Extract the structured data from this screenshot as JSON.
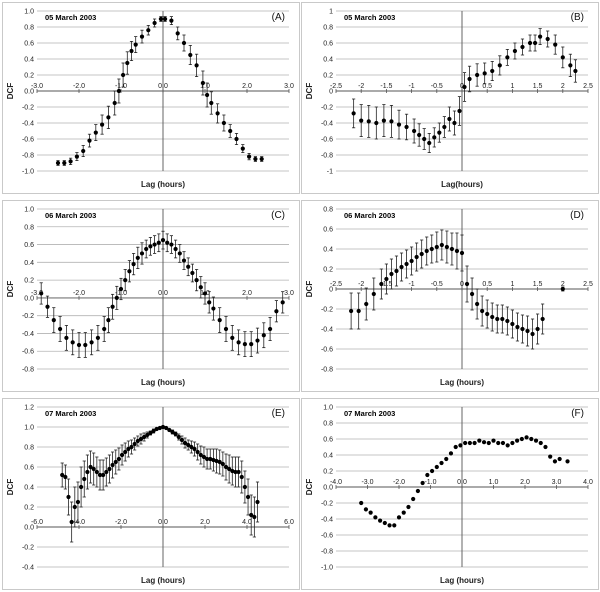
{
  "chart_data": [
    {
      "id": "A",
      "type": "scatter",
      "title": "05 March 2003",
      "panel_label": "(A)",
      "xlabel": "Lag (hours)",
      "ylabel": "DCF",
      "xlim": [
        -3.0,
        3.0
      ],
      "ylim": [
        -1.0,
        1.0
      ],
      "xticks": [
        -3.0,
        -2.0,
        -1.0,
        0.0,
        1.0,
        2.0,
        3.0
      ],
      "xtick_labels": [
        "-3.0",
        "-2.0",
        "-1.0",
        "0.0",
        "1.0",
        "2.0",
        "3.0"
      ],
      "yticks": [
        -1.0,
        -0.8,
        -0.6,
        -0.4,
        -0.2,
        0.0,
        0.2,
        0.4,
        0.6,
        0.8,
        1.0
      ],
      "ytick_labels": [
        "-1.0",
        "-0.8",
        "-0.6",
        "-0.4",
        "-0.2",
        "0.0",
        "0.2",
        "0.4",
        "0.6",
        "0.8",
        "1.0"
      ],
      "grid": true,
      "error_bars": true,
      "x": [
        -2.5,
        -2.35,
        -2.2,
        -2.05,
        -1.9,
        -1.75,
        -1.6,
        -1.45,
        -1.3,
        -1.15,
        -1.05,
        -0.95,
        -0.85,
        -0.75,
        -0.65,
        -0.5,
        -0.35,
        -0.2,
        -0.05,
        0.05,
        0.2,
        0.35,
        0.5,
        0.65,
        0.8,
        0.95,
        1.05,
        1.15,
        1.3,
        1.45,
        1.6,
        1.75,
        1.9,
        2.05,
        2.2,
        2.35
      ],
      "y": [
        -0.9,
        -0.9,
        -0.88,
        -0.82,
        -0.75,
        -0.62,
        -0.52,
        -0.42,
        -0.33,
        -0.15,
        0.0,
        0.2,
        0.35,
        0.5,
        0.58,
        0.68,
        0.76,
        0.85,
        0.9,
        0.9,
        0.88,
        0.72,
        0.6,
        0.45,
        0.32,
        0.1,
        -0.05,
        -0.15,
        -0.28,
        -0.4,
        -0.5,
        -0.6,
        -0.72,
        -0.82,
        -0.85,
        -0.85
      ],
      "err": [
        0.03,
        0.03,
        0.04,
        0.05,
        0.07,
        0.08,
        0.1,
        0.12,
        0.14,
        0.15,
        0.15,
        0.15,
        0.14,
        0.12,
        0.1,
        0.08,
        0.06,
        0.05,
        0.03,
        0.03,
        0.05,
        0.08,
        0.1,
        0.12,
        0.14,
        0.15,
        0.15,
        0.14,
        0.12,
        0.1,
        0.08,
        0.07,
        0.05,
        0.04,
        0.03,
        0.03
      ]
    },
    {
      "id": "B",
      "type": "scatter",
      "title": "05 March 2003",
      "panel_label": "(B)",
      "xlabel": "Lag(hours)",
      "ylabel": "DCF",
      "xlim": [
        -2.5,
        2.5
      ],
      "ylim": [
        -1.0,
        1.0
      ],
      "xticks": [
        -2.5,
        -2.0,
        -1.5,
        -1.0,
        -0.5,
        0.0,
        0.5,
        1.0,
        1.5,
        2.0,
        2.5
      ],
      "xtick_labels": [
        "-2.5",
        "-2",
        "-1.5",
        "-1",
        "-0.5",
        "0",
        "0.5",
        "1",
        "1.5",
        "2",
        "2.5"
      ],
      "yticks": [
        -1.0,
        -0.8,
        -0.6,
        -0.4,
        -0.2,
        0.0,
        0.2,
        0.4,
        0.6,
        0.8,
        1.0
      ],
      "ytick_labels": [
        "-1",
        "-0.8",
        "-0.6",
        "-0.4",
        "-0.2",
        "0",
        "0.2",
        "0.4",
        "0.6",
        "0.8",
        "1"
      ],
      "grid": true,
      "error_bars": true,
      "x": [
        -2.15,
        -2.0,
        -1.85,
        -1.7,
        -1.55,
        -1.4,
        -1.25,
        -1.1,
        -0.95,
        -0.85,
        -0.75,
        -0.65,
        -0.55,
        -0.45,
        -0.35,
        -0.25,
        -0.15,
        -0.05,
        0.05,
        0.15,
        0.3,
        0.45,
        0.6,
        0.75,
        0.9,
        1.05,
        1.2,
        1.35,
        1.45,
        1.55,
        1.7,
        1.85,
        2.0,
        2.15,
        2.25
      ],
      "y": [
        -0.28,
        -0.37,
        -0.38,
        -0.4,
        -0.37,
        -0.38,
        -0.42,
        -0.45,
        -0.5,
        -0.55,
        -0.6,
        -0.65,
        -0.58,
        -0.52,
        -0.45,
        -0.35,
        -0.4,
        -0.25,
        0.05,
        0.15,
        0.2,
        0.22,
        0.25,
        0.32,
        0.42,
        0.5,
        0.55,
        0.6,
        0.6,
        0.68,
        0.65,
        0.58,
        0.42,
        0.32,
        0.25
      ],
      "err": [
        0.18,
        0.2,
        0.2,
        0.2,
        0.2,
        0.2,
        0.18,
        0.16,
        0.15,
        0.14,
        0.13,
        0.12,
        0.12,
        0.12,
        0.13,
        0.15,
        0.15,
        0.18,
        0.18,
        0.16,
        0.14,
        0.13,
        0.12,
        0.12,
        0.1,
        0.1,
        0.1,
        0.1,
        0.1,
        0.1,
        0.1,
        0.12,
        0.13,
        0.14,
        0.14
      ]
    },
    {
      "id": "C",
      "type": "scatter",
      "title": "06 March 2003",
      "panel_label": "(C)",
      "xlabel": "Lag (hours)",
      "ylabel": "DCF",
      "xlim": [
        -3.0,
        3.0
      ],
      "ylim": [
        -0.8,
        1.0
      ],
      "xticks": [
        -3.0,
        -2.0,
        -1.0,
        0.0,
        1.0,
        2.0,
        3.0
      ],
      "xtick_labels": [
        "-3.0",
        "-2.0",
        "-1.0",
        "0.0",
        "1.0",
        "2.0",
        "3.0"
      ],
      "yticks": [
        -0.8,
        -0.6,
        -0.4,
        -0.2,
        0.0,
        0.2,
        0.4,
        0.6,
        0.8,
        1.0
      ],
      "ytick_labels": [
        "-0.8",
        "-0.6",
        "-0.4",
        "-0.2",
        "0.0",
        "0.2",
        "0.4",
        "0.6",
        "0.8",
        "1.0"
      ],
      "grid": true,
      "error_bars": true,
      "x": [
        -2.9,
        -2.75,
        -2.6,
        -2.45,
        -2.3,
        -2.15,
        -2.0,
        -1.85,
        -1.7,
        -1.55,
        -1.4,
        -1.3,
        -1.2,
        -1.1,
        -1.0,
        -0.9,
        -0.8,
        -0.7,
        -0.6,
        -0.5,
        -0.4,
        -0.3,
        -0.2,
        -0.1,
        0.0,
        0.1,
        0.2,
        0.3,
        0.4,
        0.5,
        0.6,
        0.7,
        0.8,
        0.9,
        1.0,
        1.1,
        1.2,
        1.35,
        1.5,
        1.65,
        1.8,
        1.95,
        2.1,
        2.25,
        2.4,
        2.55,
        2.7,
        2.85
      ],
      "y": [
        0.05,
        -0.1,
        -0.25,
        -0.35,
        -0.45,
        -0.5,
        -0.53,
        -0.53,
        -0.5,
        -0.45,
        -0.35,
        -0.25,
        -0.1,
        0.0,
        0.1,
        0.2,
        0.3,
        0.38,
        0.45,
        0.5,
        0.55,
        0.58,
        0.6,
        0.62,
        0.65,
        0.62,
        0.6,
        0.55,
        0.5,
        0.42,
        0.35,
        0.28,
        0.2,
        0.12,
        0.05,
        -0.05,
        -0.12,
        -0.25,
        -0.35,
        -0.45,
        -0.5,
        -0.52,
        -0.52,
        -0.48,
        -0.42,
        -0.35,
        -0.15,
        -0.05
      ],
      "err": [
        0.12,
        0.12,
        0.14,
        0.14,
        0.14,
        0.14,
        0.14,
        0.14,
        0.14,
        0.14,
        0.14,
        0.14,
        0.14,
        0.13,
        0.12,
        0.12,
        0.12,
        0.12,
        0.12,
        0.12,
        0.1,
        0.1,
        0.1,
        0.1,
        0.1,
        0.1,
        0.1,
        0.1,
        0.1,
        0.1,
        0.1,
        0.1,
        0.12,
        0.12,
        0.12,
        0.12,
        0.13,
        0.14,
        0.14,
        0.14,
        0.14,
        0.14,
        0.14,
        0.14,
        0.14,
        0.13,
        0.12,
        0.12
      ]
    },
    {
      "id": "D",
      "type": "scatter",
      "title": "06 March 2003",
      "panel_label": "(D)",
      "xlabel": "Lag (hours)",
      "ylabel": "DCF",
      "xlim": [
        -2.5,
        2.5
      ],
      "ylim": [
        -0.8,
        0.8
      ],
      "xticks": [
        -2.5,
        -2.0,
        -1.5,
        -1.0,
        -0.5,
        0.0,
        0.5,
        1.0,
        1.5,
        2.0,
        2.5
      ],
      "xtick_labels": [
        "-2.5",
        "-2",
        "-1.5",
        "-1",
        "-0.5",
        "0",
        "0.5",
        "1",
        "1.5",
        "2",
        "2.5"
      ],
      "yticks": [
        -0.8,
        -0.6,
        -0.4,
        -0.2,
        0.0,
        0.2,
        0.4,
        0.6,
        0.8
      ],
      "ytick_labels": [
        "-0.8",
        "-0.6",
        "-0.4",
        "-0.2",
        "0",
        "0.2",
        "0.4",
        "0.6",
        "0.8"
      ],
      "grid": true,
      "error_bars": true,
      "x": [
        -2.2,
        -2.05,
        -1.9,
        -1.75,
        -1.6,
        -1.5,
        -1.4,
        -1.3,
        -1.2,
        -1.1,
        -1.0,
        -0.9,
        -0.8,
        -0.7,
        -0.6,
        -0.5,
        -0.4,
        -0.3,
        -0.2,
        -0.1,
        0.0,
        0.1,
        0.2,
        0.3,
        0.4,
        0.5,
        0.6,
        0.7,
        0.8,
        0.9,
        1.0,
        1.1,
        1.2,
        1.3,
        1.4,
        1.5,
        1.6,
        2.0
      ],
      "y": [
        -0.22,
        -0.22,
        -0.15,
        -0.05,
        0.05,
        0.1,
        0.15,
        0.18,
        0.22,
        0.25,
        0.28,
        0.32,
        0.35,
        0.38,
        0.4,
        0.42,
        0.44,
        0.42,
        0.4,
        0.38,
        0.36,
        0.05,
        -0.05,
        -0.15,
        -0.22,
        -0.25,
        -0.28,
        -0.3,
        -0.3,
        -0.32,
        -0.35,
        -0.38,
        -0.4,
        -0.42,
        -0.45,
        -0.4,
        -0.3,
        0.0
      ],
      "err": [
        0.18,
        0.18,
        0.16,
        0.16,
        0.15,
        0.15,
        0.15,
        0.15,
        0.14,
        0.14,
        0.14,
        0.14,
        0.14,
        0.14,
        0.14,
        0.15,
        0.15,
        0.16,
        0.16,
        0.18,
        0.18,
        0.18,
        0.16,
        0.15,
        0.15,
        0.14,
        0.14,
        0.14,
        0.14,
        0.14,
        0.14,
        0.14,
        0.14,
        0.15,
        0.15,
        0.15,
        0.15,
        0.02
      ]
    },
    {
      "id": "E",
      "type": "scatter",
      "title": "07 March 2003",
      "panel_label": "(E)",
      "xlabel": "Lag (hours)",
      "ylabel": "DCF",
      "xlim": [
        -6.0,
        6.0
      ],
      "ylim": [
        -0.4,
        1.2
      ],
      "xticks": [
        -6.0,
        -4.0,
        -2.0,
        0.0,
        2.0,
        4.0,
        6.0
      ],
      "xtick_labels": [
        "-6.0",
        "-4.0",
        "-2.0",
        "0.0",
        "2.0",
        "4.0",
        "6.0"
      ],
      "yticks": [
        -0.4,
        -0.2,
        0.0,
        0.2,
        0.4,
        0.6,
        0.8,
        1.0,
        1.2
      ],
      "ytick_labels": [
        "-0.4",
        "-0.2",
        "0.0",
        "0.2",
        "0.4",
        "0.6",
        "0.8",
        "1.0",
        "1.2"
      ],
      "grid": true,
      "error_bars": true,
      "x": [
        -4.8,
        -4.65,
        -4.5,
        -4.35,
        -4.2,
        -4.05,
        -3.9,
        -3.75,
        -3.6,
        -3.45,
        -3.3,
        -3.15,
        -3.0,
        -2.85,
        -2.7,
        -2.55,
        -2.4,
        -2.25,
        -2.1,
        -1.95,
        -1.8,
        -1.65,
        -1.5,
        -1.35,
        -1.2,
        -1.05,
        -0.9,
        -0.75,
        -0.6,
        -0.45,
        -0.3,
        -0.15,
        0.0,
        0.15,
        0.3,
        0.45,
        0.6,
        0.75,
        0.9,
        1.05,
        1.2,
        1.35,
        1.5,
        1.65,
        1.8,
        1.95,
        2.1,
        2.25,
        2.4,
        2.55,
        2.7,
        2.85,
        3.0,
        3.15,
        3.3,
        3.45,
        3.6,
        3.75,
        3.9,
        4.05,
        4.2,
        4.35,
        4.5
      ],
      "y": [
        0.52,
        0.5,
        0.3,
        0.05,
        0.2,
        0.25,
        0.4,
        0.48,
        0.55,
        0.6,
        0.58,
        0.55,
        0.52,
        0.52,
        0.55,
        0.58,
        0.62,
        0.65,
        0.68,
        0.72,
        0.75,
        0.78,
        0.8,
        0.83,
        0.86,
        0.88,
        0.9,
        0.92,
        0.94,
        0.96,
        0.98,
        0.99,
        1.0,
        0.99,
        0.97,
        0.95,
        0.93,
        0.9,
        0.87,
        0.84,
        0.82,
        0.8,
        0.78,
        0.75,
        0.72,
        0.7,
        0.68,
        0.68,
        0.67,
        0.66,
        0.65,
        0.63,
        0.6,
        0.58,
        0.56,
        0.55,
        0.55,
        0.5,
        0.4,
        0.3,
        0.12,
        0.1,
        0.25
      ],
      "err": [
        0.12,
        0.12,
        0.18,
        0.2,
        0.2,
        0.2,
        0.2,
        0.18,
        0.17,
        0.16,
        0.16,
        0.15,
        0.15,
        0.15,
        0.14,
        0.14,
        0.13,
        0.12,
        0.11,
        0.1,
        0.09,
        0.08,
        0.07,
        0.06,
        0.05,
        0.05,
        0.04,
        0.03,
        0.02,
        0.02,
        0.01,
        0.01,
        0.0,
        0.01,
        0.01,
        0.02,
        0.02,
        0.03,
        0.04,
        0.05,
        0.05,
        0.06,
        0.07,
        0.08,
        0.09,
        0.1,
        0.1,
        0.1,
        0.11,
        0.12,
        0.12,
        0.12,
        0.13,
        0.14,
        0.14,
        0.15,
        0.15,
        0.16,
        0.16,
        0.18,
        0.2,
        0.2,
        0.2
      ]
    },
    {
      "id": "F",
      "type": "scatter",
      "title": "07 March 2003",
      "panel_label": "(F)",
      "xlabel": "Lag (hours)",
      "ylabel": "DCF",
      "xlim": [
        -4.0,
        4.0
      ],
      "ylim": [
        -1.0,
        1.0
      ],
      "xticks": [
        -4.0,
        -3.0,
        -2.0,
        -1.0,
        0.0,
        1.0,
        2.0,
        3.0,
        4.0
      ],
      "xtick_labels": [
        "-4.0",
        "-3.0",
        "-2.0",
        "-1.0",
        "0.0",
        "1.0",
        "2.0",
        "3.0",
        "4.0"
      ],
      "yticks": [
        -1.0,
        -0.8,
        -0.6,
        -0.4,
        -0.2,
        0.0,
        0.2,
        0.4,
        0.6,
        0.8,
        1.0
      ],
      "ytick_labels": [
        "-1.0",
        "-0.8",
        "-0.6",
        "-0.4",
        "-0.2",
        "0.0",
        "0.2",
        "0.4",
        "0.6",
        "0.8",
        "1.0"
      ],
      "grid": true,
      "error_bars": true,
      "x": [
        -3.2,
        -3.05,
        -2.9,
        -2.75,
        -2.6,
        -2.45,
        -2.3,
        -2.15,
        -2.0,
        -1.85,
        -1.7,
        -1.55,
        -1.4,
        -1.25,
        -1.1,
        -0.95,
        -0.8,
        -0.65,
        -0.5,
        -0.35,
        -0.2,
        -0.05,
        0.1,
        0.25,
        0.4,
        0.55,
        0.7,
        0.85,
        1.0,
        1.15,
        1.3,
        1.45,
        1.6,
        1.75,
        1.9,
        2.05,
        2.2,
        2.35,
        2.5,
        2.65,
        2.8,
        2.95,
        3.1,
        3.35
      ],
      "y": [
        -0.2,
        -0.28,
        -0.32,
        -0.38,
        -0.42,
        -0.45,
        -0.48,
        -0.48,
        -0.38,
        -0.32,
        -0.25,
        -0.15,
        -0.05,
        0.05,
        0.15,
        0.2,
        0.25,
        0.3,
        0.35,
        0.42,
        0.5,
        0.52,
        0.55,
        0.55,
        0.55,
        0.58,
        0.56,
        0.55,
        0.58,
        0.55,
        0.55,
        0.52,
        0.55,
        0.58,
        0.6,
        0.62,
        0.6,
        0.58,
        0.55,
        0.5,
        0.38,
        0.32,
        0.35,
        0.32
      ]
    }
  ]
}
